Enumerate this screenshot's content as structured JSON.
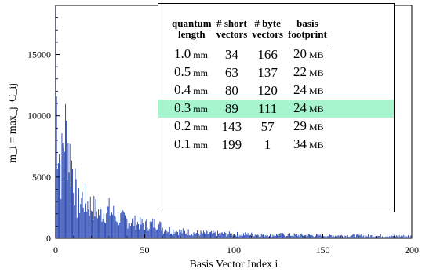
{
  "chart_data": {
    "type": "bar",
    "xlabel": "Basis Vector Index i",
    "ylabel": "m_i = max_j |C_ij|",
    "xlim": [
      0,
      200
    ],
    "ylim": [
      0,
      19000
    ],
    "xticks": [
      "0",
      "50",
      "100",
      "150",
      "200"
    ],
    "yticks": [
      "0",
      "5000",
      "10000",
      "15000"
    ],
    "bar_color": "#1f3faf",
    "grid": false,
    "approx_envelope": [
      {
        "x": 0,
        "y": 19000
      },
      {
        "x": 1,
        "y": 13400
      },
      {
        "x": 3,
        "y": 8000
      },
      {
        "x": 5,
        "y": 13200
      },
      {
        "x": 7,
        "y": 11500
      },
      {
        "x": 8,
        "y": 9800
      },
      {
        "x": 10,
        "y": 8000
      },
      {
        "x": 12,
        "y": 3900
      },
      {
        "x": 15,
        "y": 4800
      },
      {
        "x": 20,
        "y": 3900
      },
      {
        "x": 25,
        "y": 3000
      },
      {
        "x": 30,
        "y": 3400
      },
      {
        "x": 35,
        "y": 2500
      },
      {
        "x": 40,
        "y": 2200
      },
      {
        "x": 50,
        "y": 1600
      },
      {
        "x": 57,
        "y": 1800
      },
      {
        "x": 60,
        "y": 1300
      },
      {
        "x": 70,
        "y": 900
      },
      {
        "x": 80,
        "y": 700
      },
      {
        "x": 100,
        "y": 550
      },
      {
        "x": 150,
        "y": 380
      },
      {
        "x": 200,
        "y": 300
      }
    ]
  },
  "legend_table": {
    "headers": [
      [
        "quantum",
        "length"
      ],
      [
        "# short",
        "vectors"
      ],
      [
        "# byte",
        "vectors"
      ],
      [
        "basis",
        "footprint"
      ]
    ],
    "rows": [
      {
        "quantum": "1.0",
        "q_unit": "mm",
        "short": "34",
        "byte": "166",
        "footprint": "20",
        "f_unit": "MB"
      },
      {
        "quantum": "0.5",
        "q_unit": "mm",
        "short": "63",
        "byte": "137",
        "footprint": "22",
        "f_unit": "MB"
      },
      {
        "quantum": "0.4",
        "q_unit": "mm",
        "short": "80",
        "byte": "120",
        "footprint": "24",
        "f_unit": "MB"
      },
      {
        "quantum": "0.3",
        "q_unit": "mm",
        "short": "89",
        "byte": "111",
        "footprint": "24",
        "f_unit": "MB"
      },
      {
        "quantum": "0.2",
        "q_unit": "mm",
        "short": "143",
        "byte": "57",
        "footprint": "29",
        "f_unit": "MB"
      },
      {
        "quantum": "0.1",
        "q_unit": "mm",
        "short": "199",
        "byte": "1",
        "footprint": "34",
        "f_unit": "MB"
      }
    ],
    "highlight_row": 3,
    "highlight_color": "#a6f5cf"
  }
}
